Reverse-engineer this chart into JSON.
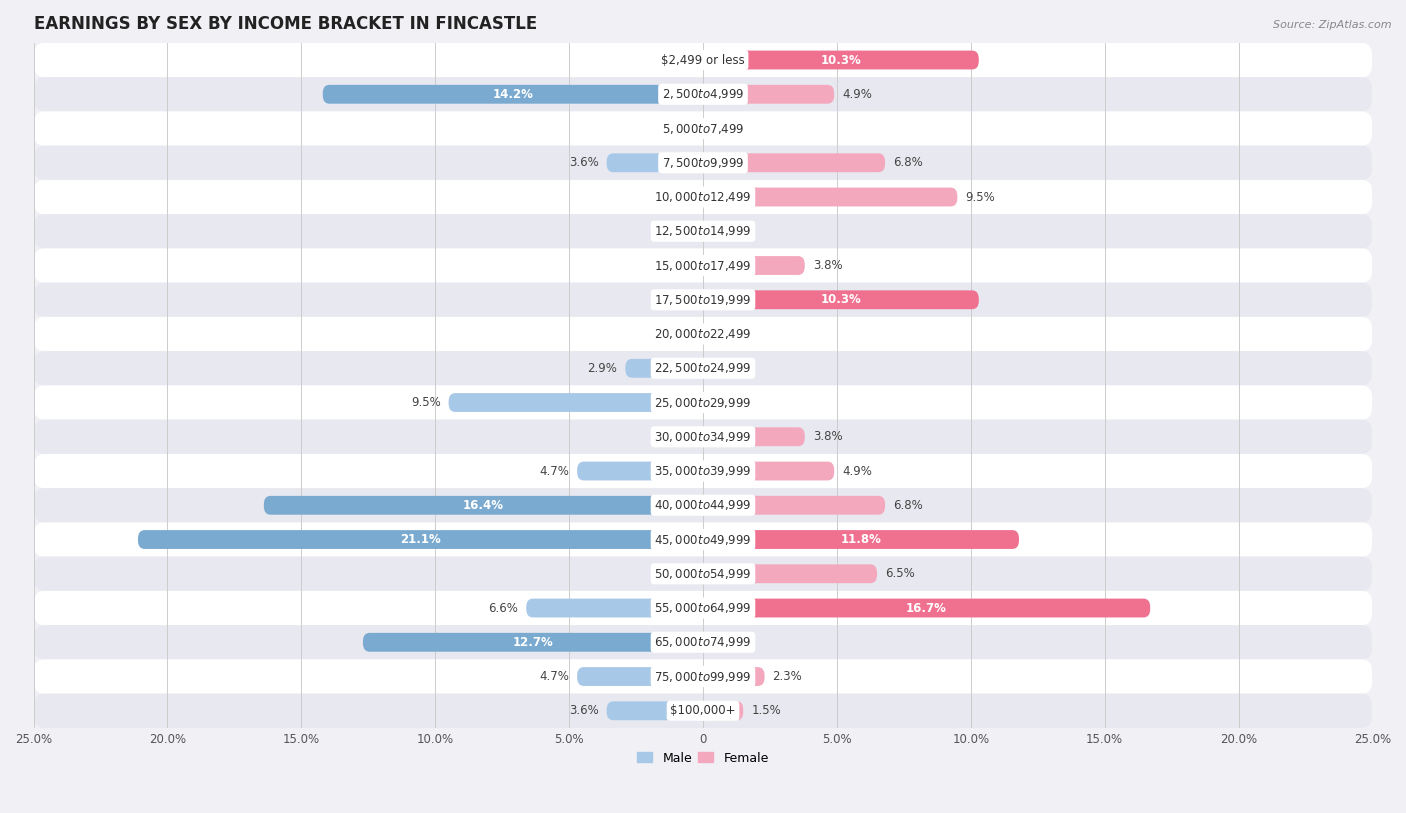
{
  "title": "EARNINGS BY SEX BY INCOME BRACKET IN FINCASTLE",
  "source": "Source: ZipAtlas.com",
  "categories": [
    "$2,499 or less",
    "$2,500 to $4,999",
    "$5,000 to $7,499",
    "$7,500 to $9,999",
    "$10,000 to $12,499",
    "$12,500 to $14,999",
    "$15,000 to $17,499",
    "$17,500 to $19,999",
    "$20,000 to $22,499",
    "$22,500 to $24,999",
    "$25,000 to $29,999",
    "$30,000 to $34,999",
    "$35,000 to $39,999",
    "$40,000 to $44,999",
    "$45,000 to $49,999",
    "$50,000 to $54,999",
    "$55,000 to $64,999",
    "$65,000 to $74,999",
    "$75,000 to $99,999",
    "$100,000+"
  ],
  "male_values": [
    0.0,
    14.2,
    0.0,
    3.6,
    0.0,
    0.0,
    0.0,
    0.0,
    0.0,
    2.9,
    9.5,
    0.0,
    4.7,
    16.4,
    21.1,
    0.0,
    6.6,
    12.7,
    4.7,
    3.6
  ],
  "female_values": [
    10.3,
    4.9,
    0.0,
    6.8,
    9.5,
    0.0,
    3.8,
    10.3,
    0.0,
    0.0,
    0.0,
    3.8,
    4.9,
    6.8,
    11.8,
    6.5,
    16.7,
    0.0,
    2.3,
    1.5
  ],
  "male_color_normal": "#a8c8e8",
  "male_color_dark": "#7aaad0",
  "female_color_normal": "#f4a8be",
  "female_color_dark": "#f07090",
  "dark_threshold": 10.0,
  "background_color": "#f0f0f5",
  "row_color_even": "#ffffff",
  "row_color_odd": "#e8e8f0",
  "xlim": 25.0,
  "bar_height": 0.55,
  "title_fontsize": 12,
  "label_fontsize": 8.5,
  "axis_fontsize": 8.5,
  "legend_fontsize": 9,
  "inside_label_threshold": 10.0
}
